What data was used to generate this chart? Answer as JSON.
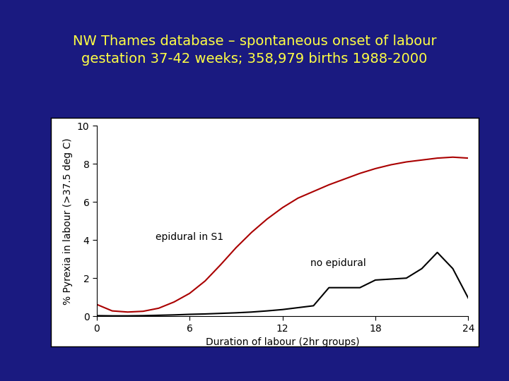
{
  "title_line1": "NW Thames database – spontaneous onset of labour",
  "title_line2": "gestation 37-42 weeks; 358,979 births 1988-2000",
  "title_color": "#ffff44",
  "background_color": "#1a1a80",
  "plot_bg_color": "#ffffff",
  "xlabel": "Duration of labour (2hr groups)",
  "ylabel": "% Pyrexia in labour (>37.5 deg C)",
  "xlim": [
    0,
    24
  ],
  "ylim": [
    0,
    10
  ],
  "xticks": [
    0,
    6,
    12,
    18,
    24
  ],
  "yticks": [
    0,
    2,
    4,
    6,
    8,
    10
  ],
  "epidural_label": "epidural in S1",
  "no_epidural_label": "no epidural",
  "epidural_x": [
    0,
    1,
    2,
    3,
    4,
    5,
    6,
    7,
    8,
    9,
    10,
    11,
    12,
    13,
    14,
    15,
    16,
    17,
    18,
    19,
    20,
    21,
    22,
    23,
    24
  ],
  "epidural_y": [
    0.62,
    0.28,
    0.22,
    0.26,
    0.42,
    0.75,
    1.2,
    1.85,
    2.7,
    3.6,
    4.4,
    5.1,
    5.7,
    6.2,
    6.55,
    6.9,
    7.2,
    7.5,
    7.75,
    7.95,
    8.1,
    8.2,
    8.3,
    8.35,
    8.3
  ],
  "no_epidural_x": [
    0,
    1,
    2,
    3,
    4,
    5,
    6,
    7,
    8,
    9,
    10,
    11,
    12,
    13,
    14,
    15,
    16,
    17,
    18,
    19,
    20,
    21,
    22,
    23,
    24
  ],
  "no_epidural_y": [
    0.03,
    0.02,
    0.02,
    0.03,
    0.05,
    0.07,
    0.1,
    0.12,
    0.15,
    0.18,
    0.22,
    0.28,
    0.35,
    0.45,
    0.55,
    1.5,
    1.5,
    1.5,
    1.9,
    1.95,
    2.0,
    2.5,
    3.35,
    2.5,
    0.95
  ],
  "epidural_color": "#aa0000",
  "no_epidural_color": "#000000",
  "line_width": 1.5,
  "title_fontsize": 14,
  "axis_fontsize": 10,
  "tick_fontsize": 10,
  "annot_fontsize": 10
}
